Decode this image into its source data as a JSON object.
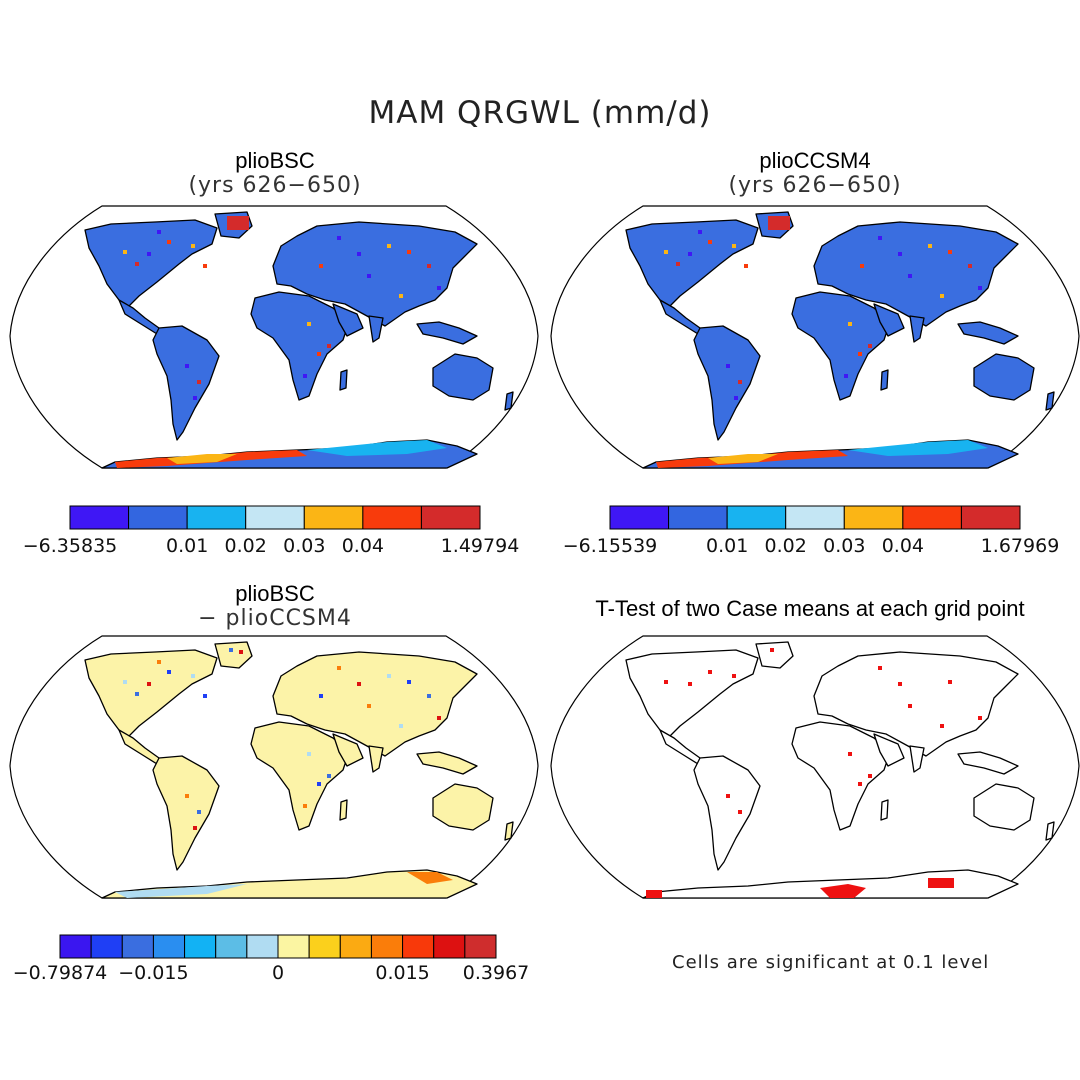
{
  "title": "MAM QRGWL (mm/d)",
  "panels": [
    {
      "title": "plioBSC",
      "subtitle": "(yrs 626−650)",
      "fill": "blue",
      "colorbar": {
        "colors": [
          "#3f17f5",
          "#3366e0",
          "#18b3f0",
          "#c4e6f4",
          "#fbb515",
          "#f83b0c",
          "#d42b2b"
        ],
        "labels": [
          "−6.35835",
          "0.01",
          "0.02",
          "0.03",
          "0.04",
          "1.49794"
        ]
      }
    },
    {
      "title": "plioCCSM4",
      "subtitle": "(yrs 626−650)",
      "fill": "blue",
      "colorbar": {
        "colors": [
          "#3f17f5",
          "#3366e0",
          "#18b3f0",
          "#c4e6f4",
          "#fbb515",
          "#f83b0c",
          "#d42b2b"
        ],
        "labels": [
          "−6.15539",
          "0.01",
          "0.02",
          "0.03",
          "0.04",
          "1.67969"
        ]
      }
    },
    {
      "title": "plioBSC",
      "subtitle": "− plioCCSM4",
      "fill": "yellow",
      "colorbar": {
        "colors": [
          "#3a16f0",
          "#1f3ff5",
          "#3a6ee0",
          "#2a8ef0",
          "#12b2f4",
          "#5cbde6",
          "#b0dcf2",
          "#fbf5a2",
          "#fbd01c",
          "#fbaa12",
          "#fa7d0a",
          "#f8390a",
          "#dd1111",
          "#cf2d2d"
        ],
        "labels": [
          "−0.79874",
          "−0.015",
          "0",
          "0.015",
          "0.3967"
        ]
      }
    },
    {
      "title": "T-Test of two Case means at each grid point",
      "fill": "none",
      "note": "Cells are significant at 0.1 level"
    }
  ]
}
